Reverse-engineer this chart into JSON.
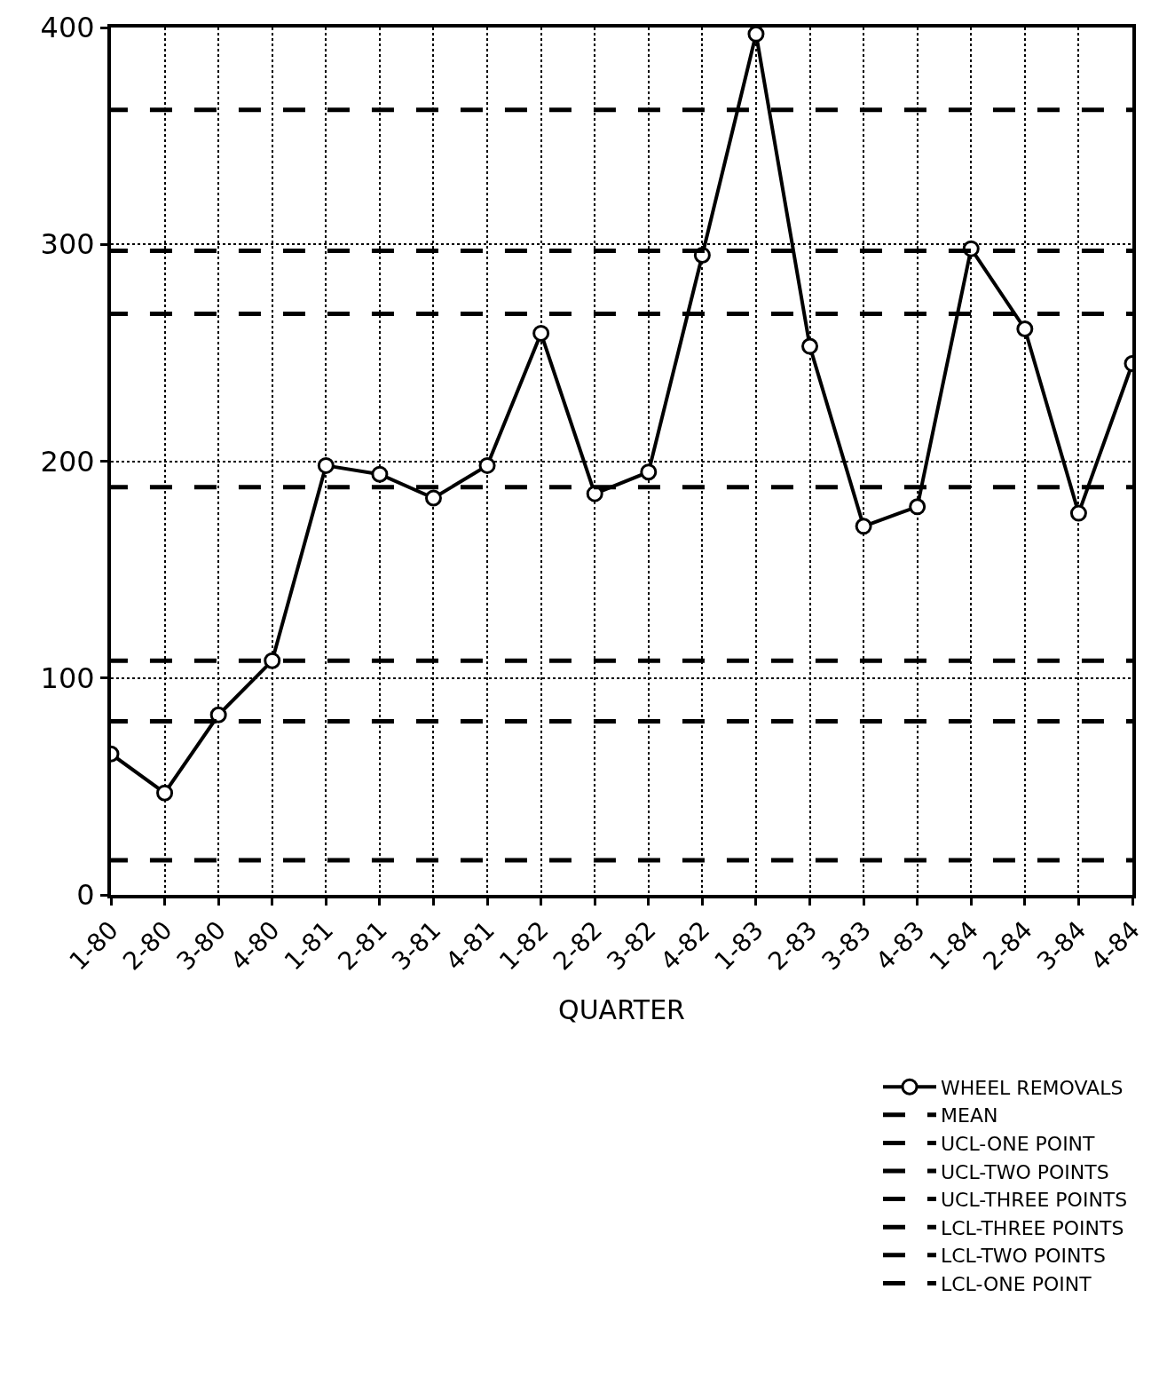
{
  "chart_data": {
    "type": "line",
    "xlabel": "QUARTER",
    "categories": [
      "1-80",
      "2-80",
      "3-80",
      "4-80",
      "1-81",
      "2-81",
      "3-81",
      "4-81",
      "1-82",
      "2-82",
      "3-82",
      "4-82",
      "1-83",
      "2-83",
      "3-83",
      "4-83",
      "1-84",
      "2-84",
      "3-84",
      "4-84"
    ],
    "series": [
      {
        "name": "WHEEL REMOVALS",
        "color": "#000000",
        "values": [
          65,
          47,
          83,
          108,
          198,
          194,
          183,
          198,
          259,
          185,
          195,
          295,
          397,
          253,
          170,
          179,
          298,
          261,
          176,
          245
        ]
      }
    ],
    "ref_lines": [
      {
        "axis": "y",
        "value": 188,
        "label": "MEAN",
        "color": "#000000",
        "line_style": "dashed"
      },
      {
        "axis": "y",
        "value": 362,
        "label": "UCL-ONE POINT",
        "color": "#000000",
        "line_style": "dashed"
      },
      {
        "axis": "y",
        "value": 297,
        "label": "UCL-TWO POINTS",
        "color": "#000000",
        "line_style": "dashed"
      },
      {
        "axis": "y",
        "value": 268,
        "label": "UCL-THREE POINTS",
        "color": "#000000",
        "line_style": "dashed"
      },
      {
        "axis": "y",
        "value": 108,
        "label": "LCL-THREE POINTS",
        "color": "#000000",
        "line_style": "dashed"
      },
      {
        "axis": "y",
        "value": 80,
        "label": "LCL-TWO POINTS",
        "color": "#000000",
        "line_style": "dashed"
      },
      {
        "axis": "y",
        "value": 16,
        "label": "LCL-ONE POINT",
        "color": "#000000",
        "line_style": "dashed"
      }
    ],
    "ylim": [
      0,
      400
    ],
    "yticks": [
      0,
      100,
      200,
      300,
      400
    ],
    "grid": true,
    "legend": "bottom right",
    "marker": "circle",
    "line_style": "solid"
  }
}
